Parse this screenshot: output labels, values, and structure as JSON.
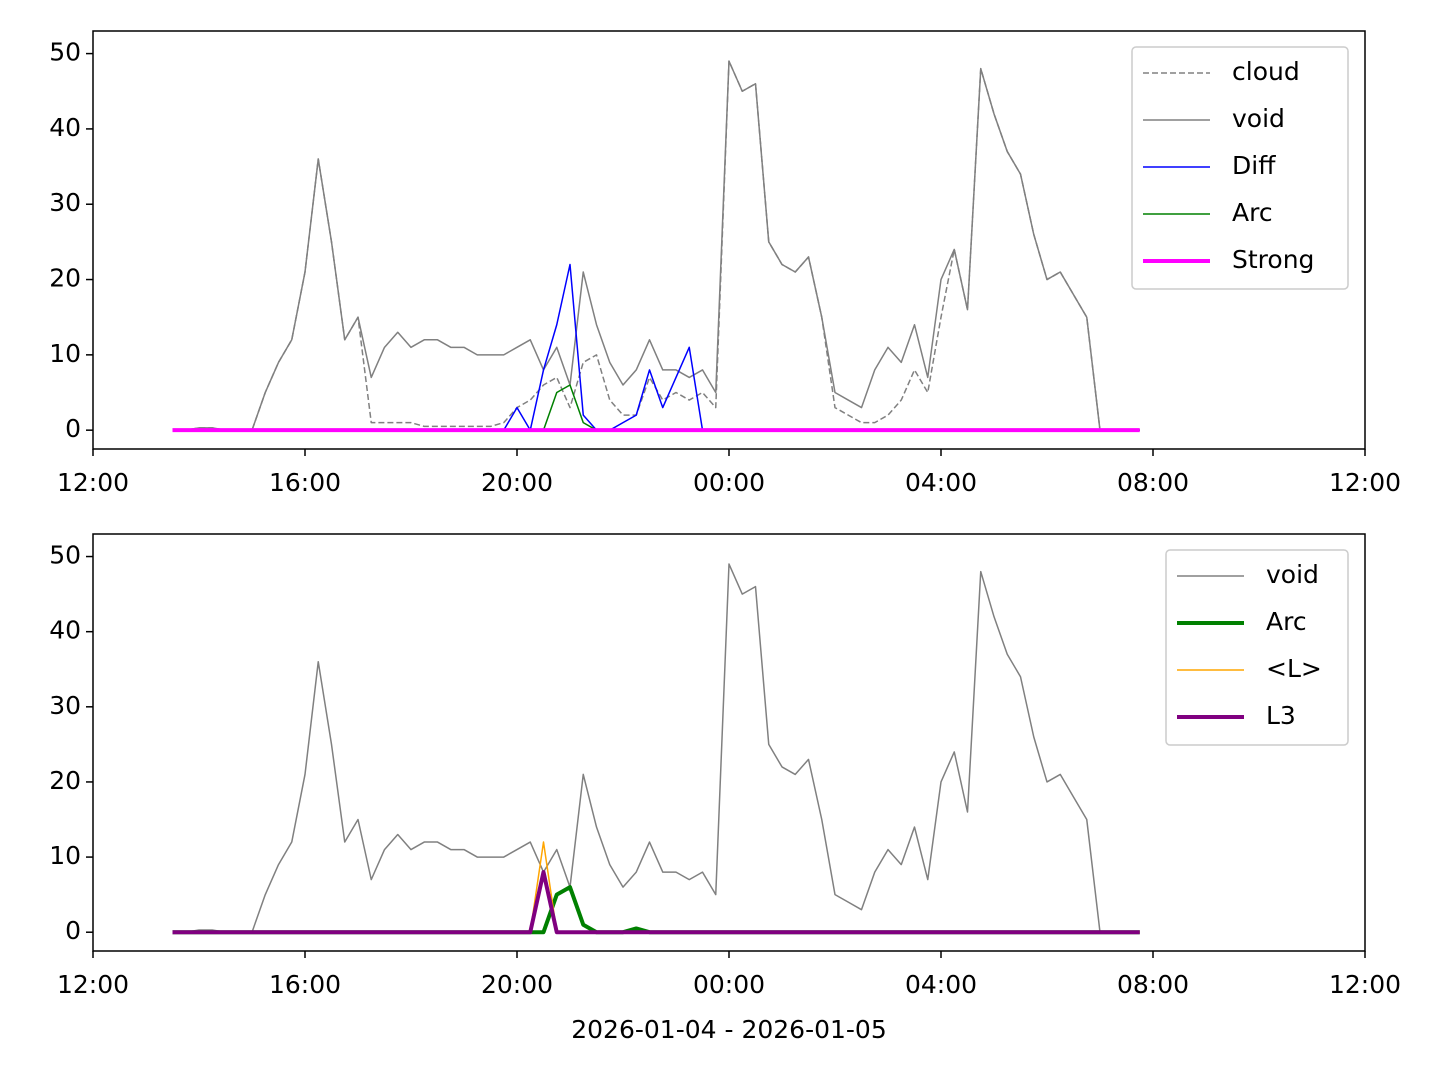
{
  "chart_data": [
    {
      "type": "line",
      "x": [
        "2026-01-04 13:30",
        "2026-01-04 13:45",
        "2026-01-04 14:00",
        "2026-01-04 14:15",
        "2026-01-04 14:30",
        "2026-01-04 14:45",
        "2026-01-04 15:00",
        "2026-01-04 15:15",
        "2026-01-04 15:30",
        "2026-01-04 15:45",
        "2026-01-04 16:00",
        "2026-01-04 16:15",
        "2026-01-04 16:30",
        "2026-01-04 16:45",
        "2026-01-04 17:00",
        "2026-01-04 17:15",
        "2026-01-04 17:30",
        "2026-01-04 17:45",
        "2026-01-04 18:00",
        "2026-01-04 18:15",
        "2026-01-04 18:30",
        "2026-01-04 18:45",
        "2026-01-04 19:00",
        "2026-01-04 19:15",
        "2026-01-04 19:30",
        "2026-01-04 19:45",
        "2026-01-04 20:00",
        "2026-01-04 20:15",
        "2026-01-04 20:30",
        "2026-01-04 20:45",
        "2026-01-04 21:00",
        "2026-01-04 21:15",
        "2026-01-04 21:30",
        "2026-01-04 21:45",
        "2026-01-04 22:00",
        "2026-01-04 22:15",
        "2026-01-04 22:30",
        "2026-01-04 22:45",
        "2026-01-04 23:00",
        "2026-01-04 23:15",
        "2026-01-04 23:30",
        "2026-01-04 23:45",
        "2026-01-05 00:00",
        "2026-01-05 00:15",
        "2026-01-05 00:30",
        "2026-01-05 00:45",
        "2026-01-05 01:00",
        "2026-01-05 01:15",
        "2026-01-05 01:30",
        "2026-01-05 01:45",
        "2026-01-05 02:00",
        "2026-01-05 02:15",
        "2026-01-05 02:30",
        "2026-01-05 02:45",
        "2026-01-05 03:00",
        "2026-01-05 03:15",
        "2026-01-05 03:30",
        "2026-01-05 03:45",
        "2026-01-05 04:00",
        "2026-01-05 04:15",
        "2026-01-05 04:30",
        "2026-01-05 04:45",
        "2026-01-05 05:00",
        "2026-01-05 05:15",
        "2026-01-05 05:30",
        "2026-01-05 05:45",
        "2026-01-05 06:00",
        "2026-01-05 06:15",
        "2026-01-05 06:30",
        "2026-01-05 06:45",
        "2026-01-05 07:00",
        "2026-01-05 07:15",
        "2026-01-05 07:30",
        "2026-01-05 07:45"
      ],
      "series": [
        {
          "name": "cloud",
          "color": "#808080",
          "linestyle": "dashed",
          "linewidth": 1.5,
          "values": [
            0,
            0,
            0.3,
            0.3,
            0,
            0,
            0,
            5,
            9,
            12,
            21,
            36,
            25,
            12,
            15,
            1,
            1,
            1,
            1,
            0.5,
            0.5,
            0.5,
            0.5,
            0.5,
            0.5,
            1,
            3,
            4,
            6,
            7,
            3,
            9,
            10,
            4,
            2,
            2,
            7,
            4,
            5,
            4,
            5,
            3,
            49,
            45,
            46,
            25,
            22,
            21,
            23,
            15,
            3,
            2,
            1,
            1,
            2,
            4,
            8,
            5,
            15,
            24,
            16,
            48,
            42,
            37,
            34,
            26,
            20,
            21,
            18,
            15,
            0,
            0,
            0,
            0
          ]
        },
        {
          "name": "void",
          "color": "#808080",
          "linestyle": "solid",
          "linewidth": 1.5,
          "values": [
            0,
            0,
            0.3,
            0.3,
            0,
            0,
            0,
            5,
            9,
            12,
            21,
            36,
            25,
            12,
            15,
            7,
            11,
            13,
            11,
            12,
            12,
            11,
            11,
            10,
            10,
            10,
            11,
            12,
            8,
            11,
            6,
            21,
            14,
            9,
            6,
            8,
            12,
            8,
            8,
            7,
            8,
            5,
            49,
            45,
            46,
            25,
            22,
            21,
            23,
            15,
            5,
            4,
            3,
            8,
            11,
            9,
            14,
            7,
            20,
            24,
            16,
            48,
            42,
            37,
            34,
            26,
            20,
            21,
            18,
            15,
            0,
            0,
            0,
            0
          ]
        },
        {
          "name": "Diff",
          "color": "#0000ff",
          "linestyle": "solid",
          "linewidth": 1.5,
          "values": [
            0,
            0,
            0,
            0,
            0,
            0,
            0,
            0,
            0,
            0,
            0,
            0,
            0,
            0,
            0,
            0,
            0,
            0,
            0,
            0,
            0,
            0,
            0,
            0,
            0,
            0,
            3,
            0,
            8,
            14,
            22,
            2,
            0,
            0,
            1,
            2,
            8,
            3,
            7,
            11,
            0,
            0,
            0,
            0,
            0,
            0,
            0,
            0,
            0,
            0,
            0,
            0,
            0,
            0,
            0,
            0,
            0,
            0,
            0,
            0,
            0,
            0,
            0,
            0,
            0,
            0,
            0,
            0,
            0,
            0,
            0,
            0,
            0,
            0
          ]
        },
        {
          "name": "Arc",
          "color": "#008000",
          "linestyle": "solid",
          "linewidth": 1.5,
          "values": [
            0,
            0,
            0,
            0,
            0,
            0,
            0,
            0,
            0,
            0,
            0,
            0,
            0,
            0,
            0,
            0,
            0,
            0,
            0,
            0,
            0,
            0,
            0,
            0,
            0,
            0,
            0,
            0,
            0,
            5,
            6,
            1,
            0,
            0,
            0,
            0,
            0,
            0,
            0,
            0,
            0,
            0,
            0,
            0,
            0,
            0,
            0,
            0,
            0,
            0,
            0,
            0,
            0,
            0,
            0,
            0,
            0,
            0,
            0,
            0,
            0,
            0,
            0,
            0,
            0,
            0,
            0,
            0,
            0,
            0,
            0,
            0,
            0,
            0
          ]
        },
        {
          "name": "Strong",
          "color": "#ff00ff",
          "linestyle": "solid",
          "linewidth": 4,
          "values": [
            0,
            0,
            0,
            0,
            0,
            0,
            0,
            0,
            0,
            0,
            0,
            0,
            0,
            0,
            0,
            0,
            0,
            0,
            0,
            0,
            0,
            0,
            0,
            0,
            0,
            0,
            0,
            0,
            0,
            0,
            0,
            0,
            0,
            0,
            0,
            0,
            0,
            0,
            0,
            0,
            0,
            0,
            0,
            0,
            0,
            0,
            0,
            0,
            0,
            0,
            0,
            0,
            0,
            0,
            0,
            0,
            0,
            0,
            0,
            0,
            0,
            0,
            0,
            0,
            0,
            0,
            0,
            0,
            0,
            0,
            0,
            0,
            0,
            0
          ]
        }
      ],
      "xlim": [
        "2026-01-04 12:00",
        "2026-01-05 12:00"
      ],
      "xticks": [
        {
          "value": "2026-01-04 12:00",
          "label": "12:00"
        },
        {
          "value": "2026-01-04 16:00",
          "label": "16:00"
        },
        {
          "value": "2026-01-04 20:00",
          "label": "20:00"
        },
        {
          "value": "2026-01-05 00:00",
          "label": "00:00"
        },
        {
          "value": "2026-01-05 04:00",
          "label": "04:00"
        },
        {
          "value": "2026-01-05 08:00",
          "label": "08:00"
        },
        {
          "value": "2026-01-05 12:00",
          "label": "12:00"
        }
      ],
      "ylim": [
        -2.5,
        53
      ],
      "yticks": [
        0,
        10,
        20,
        30,
        40,
        50
      ],
      "legend": "upper right"
    },
    {
      "type": "line",
      "x_label": "2026-01-04 - 2026-01-05",
      "x": [
        "2026-01-04 13:30",
        "2026-01-04 13:45",
        "2026-01-04 14:00",
        "2026-01-04 14:15",
        "2026-01-04 14:30",
        "2026-01-04 14:45",
        "2026-01-04 15:00",
        "2026-01-04 15:15",
        "2026-01-04 15:30",
        "2026-01-04 15:45",
        "2026-01-04 16:00",
        "2026-01-04 16:15",
        "2026-01-04 16:30",
        "2026-01-04 16:45",
        "2026-01-04 17:00",
        "2026-01-04 17:15",
        "2026-01-04 17:30",
        "2026-01-04 17:45",
        "2026-01-04 18:00",
        "2026-01-04 18:15",
        "2026-01-04 18:30",
        "2026-01-04 18:45",
        "2026-01-04 19:00",
        "2026-01-04 19:15",
        "2026-01-04 19:30",
        "2026-01-04 19:45",
        "2026-01-04 20:00",
        "2026-01-04 20:15",
        "2026-01-04 20:30",
        "2026-01-04 20:45",
        "2026-01-04 21:00",
        "2026-01-04 21:15",
        "2026-01-04 21:30",
        "2026-01-04 21:45",
        "2026-01-04 22:00",
        "2026-01-04 22:15",
        "2026-01-04 22:30",
        "2026-01-04 22:45",
        "2026-01-04 23:00",
        "2026-01-04 23:15",
        "2026-01-04 23:30",
        "2026-01-04 23:45",
        "2026-01-05 00:00",
        "2026-01-05 00:15",
        "2026-01-05 00:30",
        "2026-01-05 00:45",
        "2026-01-05 01:00",
        "2026-01-05 01:15",
        "2026-01-05 01:30",
        "2026-01-05 01:45",
        "2026-01-05 02:00",
        "2026-01-05 02:15",
        "2026-01-05 02:30",
        "2026-01-05 02:45",
        "2026-01-05 03:00",
        "2026-01-05 03:15",
        "2026-01-05 03:30",
        "2026-01-05 03:45",
        "2026-01-05 04:00",
        "2026-01-05 04:15",
        "2026-01-05 04:30",
        "2026-01-05 04:45",
        "2026-01-05 05:00",
        "2026-01-05 05:15",
        "2026-01-05 05:30",
        "2026-01-05 05:45",
        "2026-01-05 06:00",
        "2026-01-05 06:15",
        "2026-01-05 06:30",
        "2026-01-05 06:45",
        "2026-01-05 07:00",
        "2026-01-05 07:15",
        "2026-01-05 07:30",
        "2026-01-05 07:45"
      ],
      "series": [
        {
          "name": "void",
          "color": "#808080",
          "linestyle": "solid",
          "linewidth": 1.5,
          "values": [
            0,
            0,
            0.3,
            0.3,
            0,
            0,
            0,
            5,
            9,
            12,
            21,
            36,
            25,
            12,
            15,
            7,
            11,
            13,
            11,
            12,
            12,
            11,
            11,
            10,
            10,
            10,
            11,
            12,
            8,
            11,
            6,
            21,
            14,
            9,
            6,
            8,
            12,
            8,
            8,
            7,
            8,
            5,
            49,
            45,
            46,
            25,
            22,
            21,
            23,
            15,
            5,
            4,
            3,
            8,
            11,
            9,
            14,
            7,
            20,
            24,
            16,
            48,
            42,
            37,
            34,
            26,
            20,
            21,
            18,
            15,
            0,
            0,
            0,
            0
          ]
        },
        {
          "name": "Arc",
          "color": "#008000",
          "linestyle": "solid",
          "linewidth": 4,
          "values": [
            0,
            0,
            0,
            0,
            0,
            0,
            0,
            0,
            0,
            0,
            0,
            0,
            0,
            0,
            0,
            0,
            0,
            0,
            0,
            0,
            0,
            0,
            0,
            0,
            0,
            0,
            0,
            0,
            0,
            5,
            6,
            1,
            0,
            0,
            0,
            0.5,
            0,
            0,
            0,
            0,
            0,
            0,
            0,
            0,
            0,
            0,
            0,
            0,
            0,
            0,
            0,
            0,
            0,
            0,
            0,
            0,
            0,
            0,
            0,
            0,
            0,
            0,
            0,
            0,
            0,
            0,
            0,
            0,
            0,
            0,
            0,
            0,
            0,
            0
          ]
        },
        {
          "name": "<L>",
          "color": "#ffa500",
          "linestyle": "solid",
          "linewidth": 1.5,
          "values": [
            0,
            0,
            0,
            0,
            0,
            0,
            0,
            0,
            0,
            0,
            0,
            0,
            0,
            0,
            0,
            0,
            0,
            0,
            0,
            0,
            0,
            0,
            0,
            0,
            0,
            0,
            0,
            0,
            12,
            0,
            0,
            0,
            0,
            0,
            0,
            0,
            0,
            0,
            0,
            0,
            0,
            0,
            0,
            0,
            0,
            0,
            0,
            0,
            0,
            0,
            0,
            0,
            0,
            0,
            0,
            0,
            0,
            0,
            0,
            0,
            0,
            0,
            0,
            0,
            0,
            0,
            0,
            0,
            0,
            0,
            0,
            0,
            0,
            0
          ]
        },
        {
          "name": "L3",
          "color": "#800080",
          "linestyle": "solid",
          "linewidth": 4,
          "values": [
            0,
            0,
            0,
            0,
            0,
            0,
            0,
            0,
            0,
            0,
            0,
            0,
            0,
            0,
            0,
            0,
            0,
            0,
            0,
            0,
            0,
            0,
            0,
            0,
            0,
            0,
            0,
            0,
            8,
            0,
            0,
            0,
            0,
            0,
            0,
            0,
            0,
            0,
            0,
            0,
            0,
            0,
            0,
            0,
            0,
            0,
            0,
            0,
            0,
            0,
            0,
            0,
            0,
            0,
            0,
            0,
            0,
            0,
            0,
            0,
            0,
            0,
            0,
            0,
            0,
            0,
            0,
            0,
            0,
            0,
            0,
            0,
            0,
            0
          ]
        }
      ],
      "xlim": [
        "2026-01-04 12:00",
        "2026-01-05 12:00"
      ],
      "xticks": [
        {
          "value": "2026-01-04 12:00",
          "label": "12:00"
        },
        {
          "value": "2026-01-04 16:00",
          "label": "16:00"
        },
        {
          "value": "2026-01-04 20:00",
          "label": "20:00"
        },
        {
          "value": "2026-01-05 00:00",
          "label": "00:00"
        },
        {
          "value": "2026-01-05 04:00",
          "label": "04:00"
        },
        {
          "value": "2026-01-05 08:00",
          "label": "08:00"
        },
        {
          "value": "2026-01-05 12:00",
          "label": "12:00"
        }
      ],
      "ylim": [
        -2.5,
        53
      ],
      "yticks": [
        0,
        10,
        20,
        30,
        40,
        50
      ],
      "legend": "upper right"
    }
  ]
}
